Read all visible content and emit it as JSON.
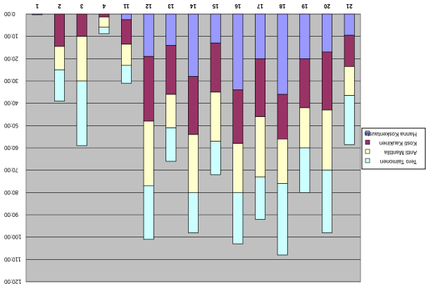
{
  "chart_data": {
    "type": "bar",
    "stacked": true,
    "orientation": "vertical, image appears vertically flipped/mirrored",
    "categories": [
      "1",
      "2",
      "3",
      "4",
      "11",
      "12",
      "13",
      "14",
      "15",
      "16",
      "17",
      "18",
      "19",
      "20",
      "21"
    ],
    "ylim": [
      0,
      120
    ],
    "y_tick_labels": [
      "0:00",
      "10:00",
      "20:00",
      "30:00",
      "40:00",
      "50:00",
      "60:00",
      "70:00",
      "80:00",
      "90:00",
      "100:00",
      "110:00",
      "120:00"
    ],
    "grid": true,
    "legend_position": "right",
    "series": [
      {
        "name": "Hanna Koskentausta",
        "color": "#9999ff",
        "values": [
          0.3,
          0,
          0,
          0,
          2.5,
          19,
          14,
          28,
          13,
          34,
          20,
          36,
          20,
          17,
          9.5
        ]
      },
      {
        "name": "Kosti Kaukinen",
        "color": "#993366",
        "values": [
          0,
          14.5,
          10,
          1.3,
          11,
          29,
          22,
          26,
          22,
          24,
          26,
          20,
          22,
          26,
          14
        ]
      },
      {
        "name": "Antti Manttila",
        "color": "#ffffcc",
        "values": [
          0,
          10.5,
          20,
          4.5,
          9.5,
          29,
          15,
          26,
          22,
          22,
          27,
          20,
          18,
          27,
          13
        ]
      },
      {
        "name": "Tero Taimonen",
        "color": "#ccffff",
        "values": [
          0,
          14,
          29,
          3,
          8,
          24,
          15,
          18,
          15,
          23,
          19,
          32,
          20,
          28,
          22
        ]
      }
    ]
  }
}
